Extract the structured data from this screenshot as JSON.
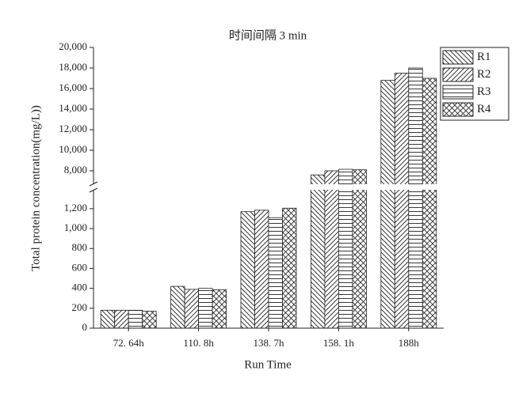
{
  "chart_data": {
    "type": "bar",
    "title": "时间间隔 3 min",
    "x_label": "Run Time",
    "y_label": "Total protein concentration(mg/L))",
    "categories": [
      "72. 64h",
      "110. 8h",
      "138. 7h",
      "158. 1h",
      "188h"
    ],
    "series": [
      {
        "name": "R1",
        "color": "#222222",
        "pattern": "backslash",
        "values": [
          180,
          420,
          1170,
          7600,
          16800
        ]
      },
      {
        "name": "R2",
        "color": "#222222",
        "pattern": "slash",
        "values": [
          180,
          390,
          1185,
          8000,
          17500
        ]
      },
      {
        "name": "R3",
        "color": "#222222",
        "pattern": "horizontal",
        "values": [
          180,
          400,
          1110,
          8150,
          18000
        ]
      },
      {
        "name": "R4",
        "color": "#222222",
        "pattern": "cross",
        "values": [
          170,
          385,
          1205,
          8100,
          17000
        ]
      }
    ],
    "ylim": [
      0,
      20000
    ],
    "ybreak": [
      1350,
      7000
    ],
    "yticks": [
      0,
      200,
      400,
      600,
      800,
      {
        "value": 1000,
        "label": "1,000"
      },
      {
        "value": 1200,
        "label": "1,200"
      },
      {
        "value": 8000,
        "label": "8,000"
      },
      {
        "value": 10000,
        "label": "10,000"
      },
      {
        "value": 12000,
        "label": "12,000"
      },
      {
        "value": 14000,
        "label": "14,000"
      },
      {
        "value": 16000,
        "label": "16,000"
      },
      {
        "value": 18000,
        "label": "18,000"
      },
      {
        "value": 20000,
        "label": "20,000"
      }
    ],
    "legend": "top-right",
    "grid": false
  }
}
